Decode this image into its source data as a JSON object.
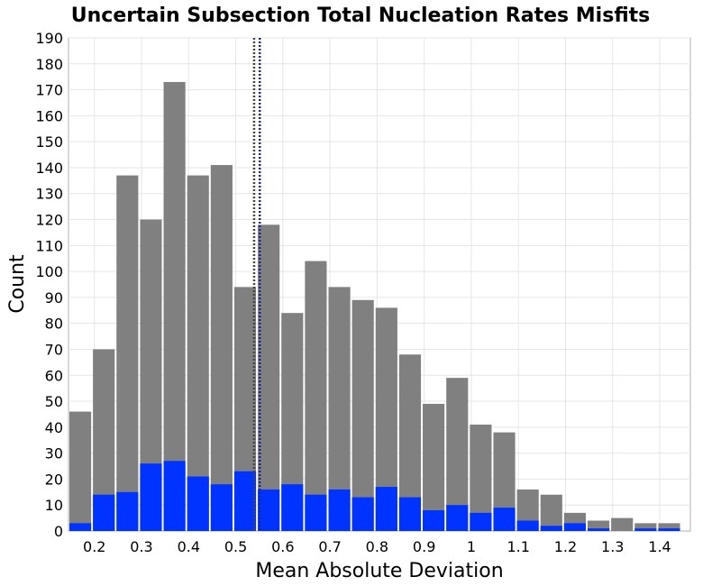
{
  "chart_data": {
    "type": "bar",
    "title": "Uncertain Subsection Total Nucleation Rates Misfits",
    "xlabel": "Mean Absolute Deviation",
    "ylabel": "Count",
    "xlim": [
      0.145,
      1.465
    ],
    "ylim": [
      0,
      190
    ],
    "bin_width": 0.05,
    "x_ticks": [
      "0.2",
      "0.3",
      "0.4",
      "0.5",
      "0.6",
      "0.7",
      "0.8",
      "0.9",
      "1",
      "1.1",
      "1.2",
      "1.3",
      "1.4"
    ],
    "x_tick_values": [
      0.2,
      0.3,
      0.4,
      0.5,
      0.6,
      0.7,
      0.8,
      0.9,
      1.0,
      1.1,
      1.2,
      1.3,
      1.4
    ],
    "y_ticks": [
      0,
      10,
      20,
      30,
      40,
      50,
      60,
      70,
      80,
      90,
      100,
      110,
      120,
      130,
      140,
      150,
      160,
      170,
      180,
      190
    ],
    "x": [
      0.17,
      0.22,
      0.27,
      0.32,
      0.37,
      0.42,
      0.47,
      0.52,
      0.57,
      0.62,
      0.67,
      0.72,
      0.77,
      0.82,
      0.87,
      0.92,
      0.97,
      1.02,
      1.07,
      1.12,
      1.17,
      1.22,
      1.27,
      1.32,
      1.37,
      1.42
    ],
    "series": [
      {
        "color": "#808080",
        "values": [
          46,
          70,
          137,
          120,
          173,
          137,
          141,
          94,
          118,
          84,
          104,
          94,
          89,
          86,
          68,
          49,
          59,
          41,
          38,
          16,
          14,
          7,
          4,
          5,
          3,
          3
        ]
      },
      {
        "color": "#0033ff",
        "values": [
          3,
          14,
          15,
          26,
          27,
          21,
          18,
          23,
          16,
          18,
          14,
          16,
          13,
          17,
          13,
          8,
          10,
          7,
          9,
          4,
          2,
          3,
          1,
          0,
          1,
          1
        ]
      }
    ],
    "reference_lines": [
      {
        "x": 0.539,
        "color": "#444444",
        "style": "dotted"
      },
      {
        "x": 0.551,
        "color": "#1a2a80",
        "style": "dotted"
      }
    ],
    "grid": true,
    "legend": "none"
  }
}
